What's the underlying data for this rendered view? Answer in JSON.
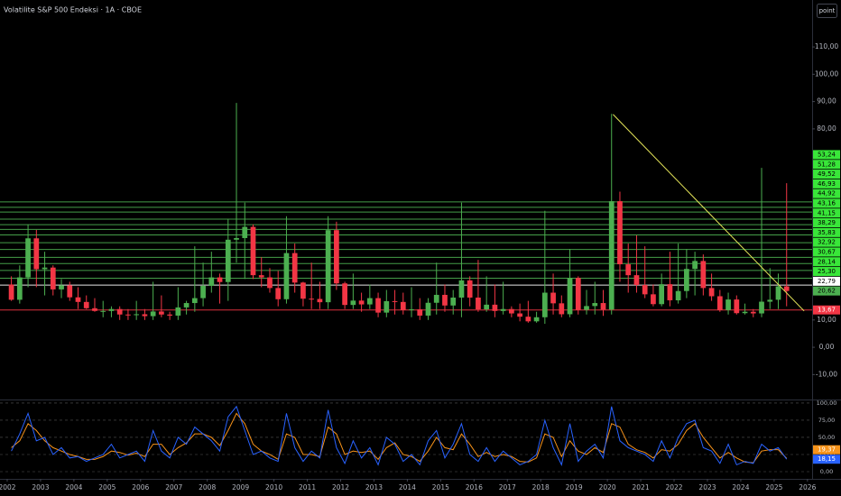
{
  "chart_data": [
    {
      "type": "candlestick",
      "title": "Volatilite S&P 500 Endeksi · 1A · CBOE",
      "up_color": "#4caf50",
      "down_color": "#f23645",
      "x": [
        2002.125,
        2002.375,
        2002.625,
        2002.875,
        2003.125,
        2003.375,
        2003.625,
        2003.875,
        2004.125,
        2004.375,
        2004.625,
        2004.875,
        2005.125,
        2005.375,
        2005.625,
        2005.875,
        2006.125,
        2006.375,
        2006.625,
        2006.875,
        2007.125,
        2007.375,
        2007.625,
        2007.875,
        2008.125,
        2008.375,
        2008.625,
        2008.875,
        2009.125,
        2009.375,
        2009.625,
        2009.875,
        2010.125,
        2010.375,
        2010.625,
        2010.875,
        2011.125,
        2011.375,
        2011.625,
        2011.875,
        2012.125,
        2012.375,
        2012.625,
        2012.875,
        2013.125,
        2013.375,
        2013.625,
        2013.875,
        2014.125,
        2014.375,
        2014.625,
        2014.875,
        2015.125,
        2015.375,
        2015.625,
        2015.875,
        2016.125,
        2016.375,
        2016.625,
        2016.875,
        2017.125,
        2017.375,
        2017.625,
        2017.875,
        2018.125,
        2018.375,
        2018.625,
        2018.875,
        2019.125,
        2019.375,
        2019.625,
        2019.875,
        2020.125,
        2020.375,
        2020.625,
        2020.875,
        2021.125,
        2021.375,
        2021.625,
        2021.875,
        2022.125,
        2022.375,
        2022.625,
        2022.875,
        2023.125,
        2023.375,
        2023.625,
        2023.875,
        2024.125,
        2024.375,
        2024.625,
        2024.875,
        2025.125,
        2025.375
      ],
      "open": [
        23.0,
        17.4,
        25.6,
        39.9,
        28.6,
        29.2,
        21.2,
        22.7,
        18.3,
        16.6,
        14.3,
        13.3,
        13.3,
        14.0,
        12.0,
        11.9,
        12.1,
        11.4,
        13.1,
        12.0,
        11.6,
        14.6,
        16.2,
        18.0,
        22.5,
        25.6,
        23.9,
        39.4,
        40.0,
        44.1,
        26.4,
        25.6,
        21.7,
        17.6,
        34.5,
        23.7,
        17.8,
        17.7,
        16.5,
        42.9,
        23.4,
        15.5,
        17.1,
        15.7,
        18.0,
        12.7,
        16.9,
        16.6,
        13.7,
        13.9,
        11.6,
        16.3,
        19.2,
        15.3,
        18.2,
        24.5,
        18.2,
        13.9,
        15.6,
        13.3,
        14.0,
        12.4,
        11.2,
        9.5,
        11.0,
        20.0,
        16.1,
        12.1,
        25.4,
        13.7,
        15.1,
        16.2,
        13.8,
        53.5,
        30.4,
        26.4,
        22.8,
        19.4,
        15.8,
        23.1,
        17.2,
        20.6,
        28.7,
        31.6,
        21.7,
        18.7,
        13.6,
        17.5,
        12.5,
        13.0,
        12.4,
        16.7,
        17.4,
        22.3
      ],
      "high": [
        26,
        30,
        45,
        43,
        35,
        30,
        25,
        24,
        22,
        19,
        18,
        17,
        15,
        15,
        14,
        17,
        14,
        24,
        19,
        13,
        22,
        17,
        37,
        31,
        35,
        27,
        47,
        89.5,
        53,
        45,
        33,
        29,
        28,
        48,
        38,
        24,
        31,
        24,
        48,
        46,
        24,
        27,
        20,
        23,
        20,
        21,
        21,
        20,
        22,
        18,
        18,
        31,
        23,
        21,
        53,
        26,
        32,
        26,
        23,
        24,
        15,
        16,
        17,
        13,
        50,
        27,
        19,
        36,
        26,
        21,
        24,
        21,
        85.5,
        57,
        38,
        41,
        37,
        23,
        27,
        35,
        38,
        36,
        35,
        34,
        27,
        21,
        20,
        19,
        16,
        14,
        65.7,
        29,
        27,
        60.1
      ],
      "low": [
        17,
        16,
        22,
        22,
        19,
        19,
        18,
        17,
        14,
        14,
        13,
        11,
        11,
        10,
        10,
        10,
        10,
        10,
        11,
        10,
        10,
        12,
        13,
        15,
        20,
        16,
        17,
        31,
        25,
        25,
        22,
        20,
        15,
        16,
        20,
        15,
        14,
        14,
        14,
        21,
        14,
        14,
        13,
        14,
        11,
        11,
        12,
        12,
        11,
        10,
        10,
        12,
        13,
        12,
        11,
        15,
        13,
        13,
        11,
        12,
        11,
        9.5,
        9,
        9,
        8.6,
        12,
        11,
        11,
        12,
        12,
        12,
        11.5,
        12,
        24,
        20,
        20,
        18,
        15,
        15,
        15,
        16,
        18,
        19,
        19,
        17,
        13,
        12,
        12,
        12,
        11,
        11,
        14,
        14,
        15
      ],
      "close": [
        17.4,
        25.6,
        39.9,
        28.6,
        29.2,
        21.2,
        22.7,
        18.3,
        16.6,
        14.3,
        13.3,
        13.3,
        14.0,
        12.0,
        11.9,
        12.1,
        11.4,
        13.1,
        12.0,
        11.6,
        14.6,
        16.2,
        18.0,
        22.5,
        25.6,
        23.9,
        39.4,
        40.0,
        44.1,
        26.4,
        25.6,
        21.7,
        17.6,
        34.5,
        23.7,
        17.8,
        17.7,
        16.5,
        42.9,
        23.4,
        15.5,
        17.1,
        15.7,
        18.0,
        12.7,
        16.9,
        16.6,
        13.7,
        13.9,
        11.6,
        16.3,
        19.2,
        15.3,
        18.2,
        24.5,
        18.2,
        13.9,
        15.6,
        13.3,
        14.0,
        12.4,
        11.2,
        9.5,
        11.0,
        20.0,
        16.1,
        12.1,
        25.4,
        13.7,
        15.1,
        16.2,
        13.8,
        53.5,
        30.4,
        26.4,
        22.8,
        19.4,
        15.8,
        23.1,
        17.2,
        20.6,
        28.7,
        31.6,
        21.7,
        18.7,
        13.6,
        17.5,
        12.5,
        13.0,
        12.4,
        16.7,
        17.4,
        22.3,
        20.62
      ],
      "last_label": "20,62",
      "xlim": [
        2001.784,
        2026.14
      ],
      "xticks": [
        2002,
        2003,
        2004,
        2005,
        2006,
        2007,
        2008,
        2009,
        2010,
        2011,
        2012,
        2013,
        2014,
        2015,
        2016,
        2017,
        2018,
        2019,
        2020,
        2021,
        2022,
        2023,
        2024,
        2025,
        2026
      ],
      "ylim": [
        -18.8,
        127.2
      ],
      "yticks": [
        {
          "value": -10,
          "label": "-10,00"
        },
        {
          "value": 0,
          "label": "0,00"
        },
        {
          "value": 10,
          "label": "10,00"
        },
        {
          "value": 80,
          "label": "80,00"
        },
        {
          "value": 90,
          "label": "90,00"
        },
        {
          "value": 100,
          "label": "100,00"
        },
        {
          "value": 110,
          "label": "110,00"
        }
      ],
      "levels": [
        {
          "value": 53.24,
          "label": "53,24",
          "color": "#4caf50"
        },
        {
          "value": 51.28,
          "label": "51,28",
          "color": "#4caf50"
        },
        {
          "value": 49.52,
          "label": "49,52",
          "color": "#4caf50"
        },
        {
          "value": 46.93,
          "label": "46,93",
          "color": "#4caf50"
        },
        {
          "value": 44.92,
          "label": "44,92",
          "color": "#4caf50"
        },
        {
          "value": 43.16,
          "label": "43,16",
          "color": "#4caf50"
        },
        {
          "value": 41.15,
          "label": "41,15",
          "color": "#4caf50"
        },
        {
          "value": 38.29,
          "label": "38,29",
          "color": "#4caf50"
        },
        {
          "value": 35.83,
          "label": "35,83",
          "color": "#4caf50"
        },
        {
          "value": 32.92,
          "label": "32,92",
          "color": "#4caf50"
        },
        {
          "value": 30.67,
          "label": "30,67",
          "color": "#4caf50"
        },
        {
          "value": 28.14,
          "label": "28,14",
          "color": "#4caf50"
        },
        {
          "value": 25.3,
          "label": "25,30",
          "color": "#4caf50"
        },
        {
          "value": 22.79,
          "label": "22,79",
          "color": "#ffffff"
        },
        {
          "value": 13.67,
          "label": "13,67",
          "color": "#f23645"
        }
      ],
      "trendline": {
        "x": [
          2020.17,
          2025.9
        ],
        "y": [
          85.3,
          13.3
        ],
        "color": "#e6e65a"
      }
    },
    {
      "type": "line",
      "ylim": [
        -9.2,
        103.9
      ],
      "yticks": [
        {
          "value": 0,
          "label": "0,00"
        },
        {
          "value": 25,
          "label": "25,00"
        },
        {
          "value": 50,
          "label": "50,00"
        },
        {
          "value": 75,
          "label": "75,00"
        },
        {
          "value": 100,
          "label": "100,00"
        }
      ],
      "grid": true,
      "series": [
        {
          "color": "#f7931a",
          "last_label": "19,37",
          "values": [
            35,
            45,
            70,
            60,
            45,
            35,
            30,
            25,
            22,
            18,
            18,
            22,
            30,
            28,
            24,
            27,
            22,
            40,
            40,
            25,
            35,
            42,
            55,
            55,
            50,
            38,
            60,
            85,
            70,
            40,
            30,
            25,
            18,
            55,
            50,
            25,
            25,
            22,
            65,
            55,
            25,
            30,
            28,
            30,
            18,
            35,
            42,
            25,
            22,
            15,
            30,
            50,
            35,
            32,
            55,
            40,
            22,
            28,
            22,
            25,
            22,
            15,
            14,
            20,
            55,
            50,
            22,
            45,
            30,
            25,
            35,
            28,
            70,
            65,
            40,
            32,
            28,
            20,
            32,
            30,
            40,
            60,
            70,
            50,
            35,
            20,
            28,
            20,
            14,
            13,
            30,
            32,
            32,
            19.37
          ]
        },
        {
          "color": "#2962ff",
          "last_label": "18,15",
          "values": [
            30,
            55,
            85,
            45,
            50,
            25,
            35,
            20,
            22,
            15,
            20,
            25,
            40,
            20,
            25,
            30,
            15,
            60,
            30,
            20,
            50,
            40,
            65,
            55,
            45,
            30,
            80,
            95,
            60,
            25,
            30,
            20,
            15,
            85,
            35,
            15,
            30,
            20,
            90,
            35,
            12,
            45,
            20,
            35,
            10,
            50,
            40,
            15,
            25,
            10,
            45,
            60,
            20,
            40,
            70,
            25,
            15,
            35,
            15,
            30,
            20,
            10,
            15,
            25,
            75,
            35,
            10,
            70,
            15,
            30,
            40,
            20,
            95,
            45,
            35,
            30,
            25,
            15,
            45,
            20,
            50,
            70,
            75,
            35,
            30,
            12,
            40,
            10,
            15,
            12,
            40,
            30,
            35,
            18.15
          ]
        }
      ]
    }
  ],
  "toolbar": {
    "scale_button": "point"
  }
}
